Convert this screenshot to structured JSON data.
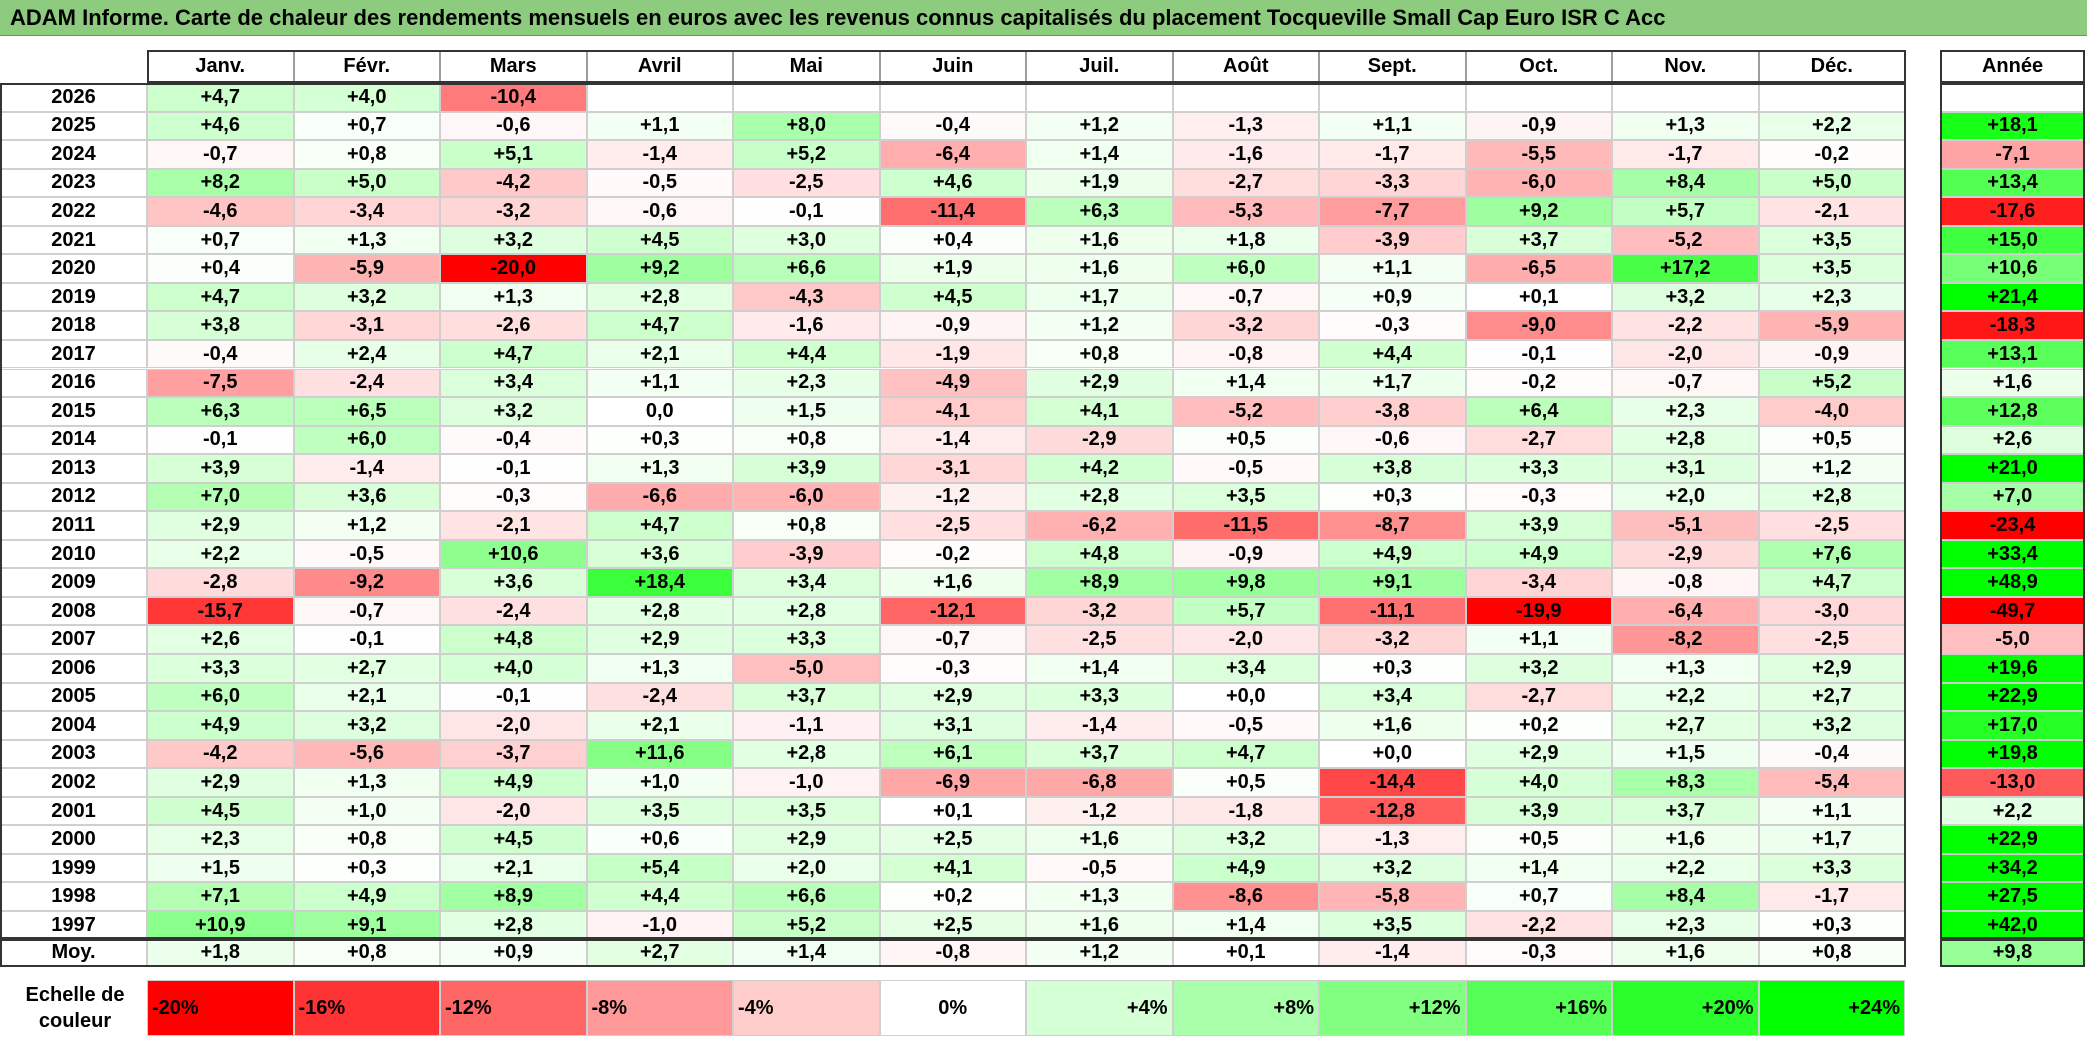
{
  "title": "ADAM Informe. Carte de chaleur des rendements mensuels en euros avec les revenus connus capitalisés du placement Tocqueville Small Cap Euro ISR C Acc",
  "chart_data": {
    "type": "heatmap",
    "months": [
      "Janv.",
      "Févr.",
      "Mars",
      "Avril",
      "Mai",
      "Juin",
      "Juil.",
      "Août",
      "Sept.",
      "Oct.",
      "Nov.",
      "Déc."
    ],
    "year_header": "Année",
    "rows": [
      {
        "year": "2026",
        "values": [
          "+4,7",
          "+4,0",
          "-10,4",
          "",
          "",
          "",
          "",
          "",
          "",
          "",
          "",
          ""
        ],
        "annual": ""
      },
      {
        "year": "2025",
        "values": [
          "+4,6",
          "+0,7",
          "-0,6",
          "+1,1",
          "+8,0",
          "-0,4",
          "+1,2",
          "-1,3",
          "+1,1",
          "-0,9",
          "+1,3",
          "+2,2"
        ],
        "annual": "+18,1"
      },
      {
        "year": "2024",
        "values": [
          "-0,7",
          "+0,8",
          "+5,1",
          "-1,4",
          "+5,2",
          "-6,4",
          "+1,4",
          "-1,6",
          "-1,7",
          "-5,5",
          "-1,7",
          "-0,2"
        ],
        "annual": "-7,1"
      },
      {
        "year": "2023",
        "values": [
          "+8,2",
          "+5,0",
          "-4,2",
          "-0,5",
          "-2,5",
          "+4,6",
          "+1,9",
          "-2,7",
          "-3,3",
          "-6,0",
          "+8,4",
          "+5,0"
        ],
        "annual": "+13,4"
      },
      {
        "year": "2022",
        "values": [
          "-4,6",
          "-3,4",
          "-3,2",
          "-0,6",
          "-0,1",
          "-11,4",
          "+6,3",
          "-5,3",
          "-7,7",
          "+9,2",
          "+5,7",
          "-2,1"
        ],
        "annual": "-17,6"
      },
      {
        "year": "2021",
        "values": [
          "+0,7",
          "+1,3",
          "+3,2",
          "+4,5",
          "+3,0",
          "+0,4",
          "+1,6",
          "+1,8",
          "-3,9",
          "+3,7",
          "-5,2",
          "+3,5"
        ],
        "annual": "+15,0"
      },
      {
        "year": "2020",
        "values": [
          "+0,4",
          "-5,9",
          "-20,0",
          "+9,2",
          "+6,6",
          "+1,9",
          "+1,6",
          "+6,0",
          "+1,1",
          "-6,5",
          "+17,2",
          "+3,5"
        ],
        "annual": "+10,6"
      },
      {
        "year": "2019",
        "values": [
          "+4,7",
          "+3,2",
          "+1,3",
          "+2,8",
          "-4,3",
          "+4,5",
          "+1,7",
          "-0,7",
          "+0,9",
          "+0,1",
          "+3,2",
          "+2,3"
        ],
        "annual": "+21,4"
      },
      {
        "year": "2018",
        "values": [
          "+3,8",
          "-3,1",
          "-2,6",
          "+4,7",
          "-1,6",
          "-0,9",
          "+1,2",
          "-3,2",
          "-0,3",
          "-9,0",
          "-2,2",
          "-5,9"
        ],
        "annual": "-18,3"
      },
      {
        "year": "2017",
        "values": [
          "-0,4",
          "+2,4",
          "+4,7",
          "+2,1",
          "+4,4",
          "-1,9",
          "+0,8",
          "-0,8",
          "+4,4",
          "-0,1",
          "-2,0",
          "-0,9"
        ],
        "annual": "+13,1"
      },
      {
        "year": "2016",
        "values": [
          "-7,5",
          "-2,4",
          "+3,4",
          "+1,1",
          "+2,3",
          "-4,9",
          "+2,9",
          "+1,4",
          "+1,7",
          "-0,2",
          "-0,7",
          "+5,2"
        ],
        "annual": "+1,6"
      },
      {
        "year": "2015",
        "values": [
          "+6,3",
          "+6,5",
          "+3,2",
          "0,0",
          "+1,5",
          "-4,1",
          "+4,1",
          "-5,2",
          "-3,8",
          "+6,4",
          "+2,3",
          "-4,0"
        ],
        "annual": "+12,8"
      },
      {
        "year": "2014",
        "values": [
          "-0,1",
          "+6,0",
          "-0,4",
          "+0,3",
          "+0,8",
          "-1,4",
          "-2,9",
          "+0,5",
          "-0,6",
          "-2,7",
          "+2,8",
          "+0,5"
        ],
        "annual": "+2,6"
      },
      {
        "year": "2013",
        "values": [
          "+3,9",
          "-1,4",
          "-0,1",
          "+1,3",
          "+3,9",
          "-3,1",
          "+4,2",
          "-0,5",
          "+3,8",
          "+3,3",
          "+3,1",
          "+1,2"
        ],
        "annual": "+21,0"
      },
      {
        "year": "2012",
        "values": [
          "+7,0",
          "+3,6",
          "-0,3",
          "-6,6",
          "-6,0",
          "-1,2",
          "+2,8",
          "+3,5",
          "+0,3",
          "-0,3",
          "+2,0",
          "+2,8"
        ],
        "annual": "+7,0"
      },
      {
        "year": "2011",
        "values": [
          "+2,9",
          "+1,2",
          "-2,1",
          "+4,7",
          "+0,8",
          "-2,5",
          "-6,2",
          "-11,5",
          "-8,7",
          "+3,9",
          "-5,1",
          "-2,5"
        ],
        "annual": "-23,4"
      },
      {
        "year": "2010",
        "values": [
          "+2,2",
          "-0,5",
          "+10,6",
          "+3,6",
          "-3,9",
          "-0,2",
          "+4,8",
          "-0,9",
          "+4,9",
          "+4,9",
          "-2,9",
          "+7,6"
        ],
        "annual": "+33,4"
      },
      {
        "year": "2009",
        "values": [
          "-2,8",
          "-9,2",
          "+3,6",
          "+18,4",
          "+3,4",
          "+1,6",
          "+8,9",
          "+9,8",
          "+9,1",
          "-3,4",
          "-0,8",
          "+4,7"
        ],
        "annual": "+48,9"
      },
      {
        "year": "2008",
        "values": [
          "-15,7",
          "-0,7",
          "-2,4",
          "+2,8",
          "+2,8",
          "-12,1",
          "-3,2",
          "+5,7",
          "-11,1",
          "-19,9",
          "-6,4",
          "-3,0"
        ],
        "annual": "-49,7"
      },
      {
        "year": "2007",
        "values": [
          "+2,6",
          "-0,1",
          "+4,8",
          "+2,9",
          "+3,3",
          "-0,7",
          "-2,5",
          "-2,0",
          "-3,2",
          "+1,1",
          "-8,2",
          "-2,5"
        ],
        "annual": "-5,0"
      },
      {
        "year": "2006",
        "values": [
          "+3,3",
          "+2,7",
          "+4,0",
          "+1,3",
          "-5,0",
          "-0,3",
          "+1,4",
          "+3,4",
          "+0,3",
          "+3,2",
          "+1,3",
          "+2,9"
        ],
        "annual": "+19,6"
      },
      {
        "year": "2005",
        "values": [
          "+6,0",
          "+2,1",
          "-0,1",
          "-2,4",
          "+3,7",
          "+2,9",
          "+3,3",
          "+0,0",
          "+3,4",
          "-2,7",
          "+2,2",
          "+2,7"
        ],
        "annual": "+22,9"
      },
      {
        "year": "2004",
        "values": [
          "+4,9",
          "+3,2",
          "-2,0",
          "+2,1",
          "-1,1",
          "+3,1",
          "-1,4",
          "-0,5",
          "+1,6",
          "+0,2",
          "+2,7",
          "+3,2"
        ],
        "annual": "+17,0"
      },
      {
        "year": "2003",
        "values": [
          "-4,2",
          "-5,6",
          "-3,7",
          "+11,6",
          "+2,8",
          "+6,1",
          "+3,7",
          "+4,7",
          "+0,0",
          "+2,9",
          "+1,5",
          "-0,4"
        ],
        "annual": "+19,8"
      },
      {
        "year": "2002",
        "values": [
          "+2,9",
          "+1,3",
          "+4,9",
          "+1,0",
          "-1,0",
          "-6,9",
          "-6,8",
          "+0,5",
          "-14,4",
          "+4,0",
          "+8,3",
          "-5,4"
        ],
        "annual": "-13,0"
      },
      {
        "year": "2001",
        "values": [
          "+4,5",
          "+1,0",
          "-2,0",
          "+3,5",
          "+3,5",
          "+0,1",
          "-1,2",
          "-1,8",
          "-12,8",
          "+3,9",
          "+3,7",
          "+1,1"
        ],
        "annual": "+2,2"
      },
      {
        "year": "2000",
        "values": [
          "+2,3",
          "+0,8",
          "+4,5",
          "+0,6",
          "+2,9",
          "+2,5",
          "+1,6",
          "+3,2",
          "-1,3",
          "+0,5",
          "+1,6",
          "+1,7"
        ],
        "annual": "+22,9"
      },
      {
        "year": "1999",
        "values": [
          "+1,5",
          "+0,3",
          "+2,1",
          "+5,4",
          "+2,0",
          "+4,1",
          "-0,5",
          "+4,9",
          "+3,2",
          "+1,4",
          "+2,2",
          "+3,3"
        ],
        "annual": "+34,2"
      },
      {
        "year": "1998",
        "values": [
          "+7,1",
          "+4,9",
          "+8,9",
          "+4,4",
          "+6,6",
          "+0,2",
          "+1,3",
          "-8,6",
          "-5,8",
          "+0,7",
          "+8,4",
          "-1,7"
        ],
        "annual": "+27,5"
      },
      {
        "year": "1997",
        "values": [
          "+10,9",
          "+9,1",
          "+2,8",
          "-1,0",
          "+5,2",
          "+2,5",
          "+1,6",
          "+1,4",
          "+3,5",
          "-2,2",
          "+2,3",
          "+0,3"
        ],
        "annual": "+42,0"
      }
    ],
    "average": {
      "label": "Moy.",
      "values": [
        "+1,8",
        "+0,8",
        "+0,9",
        "+2,7",
        "+1,4",
        "-0,8",
        "+1,2",
        "+0,1",
        "-1,4",
        "-0,3",
        "+1,6",
        "+0,8"
      ],
      "annual": "+9,8"
    },
    "color_scale": {
      "label": "Echelle de couleur",
      "stops": [
        "-20%",
        "-16%",
        "-12%",
        "-8%",
        "-4%",
        "0%",
        "+4%",
        "+8%",
        "+12%",
        "+16%",
        "+20%",
        "+24%"
      ]
    },
    "colors": {
      "negative": "#ff0000",
      "zero": "#ffffff",
      "positive": "#00ff00"
    }
  }
}
